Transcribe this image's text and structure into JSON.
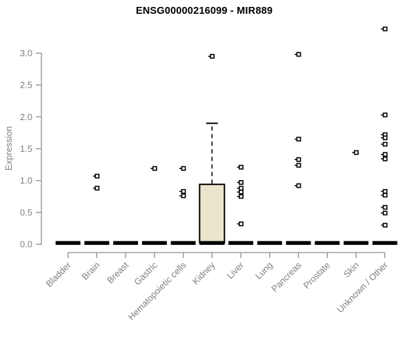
{
  "header": {
    "title": "ENSG00000216099 - MIR889"
  },
  "colors": {
    "background": "#ffffff",
    "title_text": "#000000",
    "axis_line": "#8c8c8c",
    "axis_text": "#7f7f7f",
    "box_fill": "#ebe6cb",
    "box_border": "#000000",
    "marker": "#000000",
    "marker_fill": "#ffffff"
  },
  "chart_data": {
    "type": "boxplot",
    "title": "ENSG00000216099 - MIR889",
    "xlabel": "",
    "ylabel": "Expression",
    "ylim": [
      0,
      3.4
    ],
    "yticks": [
      0.0,
      0.5,
      1.0,
      1.5,
      2.0,
      2.5,
      3.0
    ],
    "grid": false,
    "legend": false,
    "categories": [
      "Bladder",
      "Brain",
      "Breast",
      "Gastric",
      "Hematopoietic cells",
      "Kidney",
      "Liver",
      "Lung",
      "Pancreas",
      "Prostate",
      "Skin",
      "Unknown / Other"
    ],
    "series": [
      {
        "category": "Bladder",
        "median": 0.02,
        "q1": 0.0,
        "q3": 0.0,
        "whisker_low": 0.0,
        "whisker_high": 0.0,
        "points": []
      },
      {
        "category": "Brain",
        "median": 0.02,
        "q1": 0.0,
        "q3": 0.0,
        "whisker_low": 0.0,
        "whisker_high": 0.0,
        "points": [
          1.07,
          0.88
        ]
      },
      {
        "category": "Breast",
        "median": 0.02,
        "q1": 0.0,
        "q3": 0.0,
        "whisker_low": 0.0,
        "whisker_high": 0.0,
        "points": []
      },
      {
        "category": "Gastric",
        "median": 0.02,
        "q1": 0.0,
        "q3": 0.0,
        "whisker_low": 0.0,
        "whisker_high": 0.0,
        "points": [
          1.19
        ]
      },
      {
        "category": "Hematopoietic cells",
        "median": 0.02,
        "q1": 0.0,
        "q3": 0.0,
        "whisker_low": 0.0,
        "whisker_high": 0.0,
        "points": [
          1.19,
          0.83,
          0.76
        ]
      },
      {
        "category": "Kidney",
        "median": 0.02,
        "q1": 0.02,
        "q3": 0.94,
        "whisker_low": 0.02,
        "whisker_high": 1.9,
        "points": [
          2.95
        ]
      },
      {
        "category": "Liver",
        "median": 0.02,
        "q1": 0.0,
        "q3": 0.0,
        "whisker_low": 0.0,
        "whisker_high": 0.0,
        "points": [
          1.21,
          0.97,
          0.88,
          0.82,
          0.75,
          0.32
        ]
      },
      {
        "category": "Lung",
        "median": 0.02,
        "q1": 0.0,
        "q3": 0.0,
        "whisker_low": 0.0,
        "whisker_high": 0.0,
        "points": []
      },
      {
        "category": "Pancreas",
        "median": 0.02,
        "q1": 0.0,
        "q3": 0.0,
        "whisker_low": 0.0,
        "whisker_high": 0.0,
        "points": [
          2.98,
          1.65,
          1.33,
          1.24,
          0.92
        ]
      },
      {
        "category": "Prostate",
        "median": 0.02,
        "q1": 0.0,
        "q3": 0.0,
        "whisker_low": 0.0,
        "whisker_high": 0.0,
        "points": []
      },
      {
        "category": "Skin",
        "median": 0.02,
        "q1": 0.0,
        "q3": 0.0,
        "whisker_low": 0.0,
        "whisker_high": 0.0,
        "points": [
          1.44
        ]
      },
      {
        "category": "Unknown / Other",
        "median": 0.02,
        "q1": 0.0,
        "q3": 0.0,
        "whisker_low": 0.0,
        "whisker_high": 0.0,
        "points": [
          3.38,
          2.03,
          1.72,
          1.67,
          1.57,
          1.41,
          1.34,
          0.83,
          0.77,
          0.58,
          0.49,
          0.3
        ]
      }
    ]
  }
}
